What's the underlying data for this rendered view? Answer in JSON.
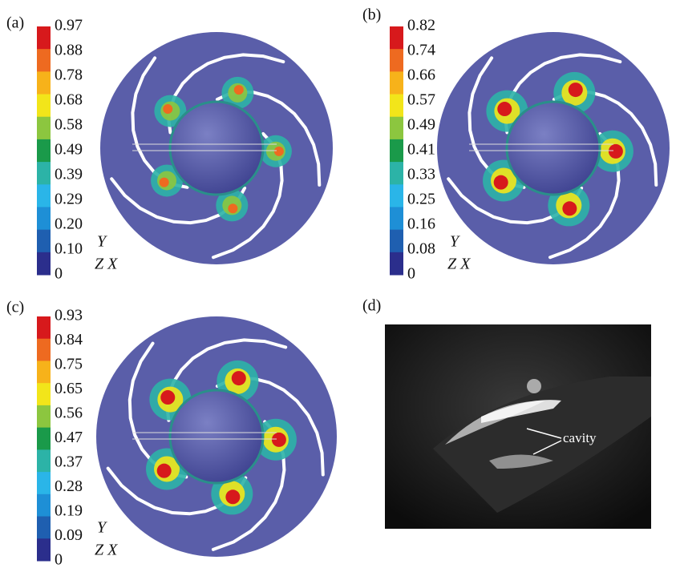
{
  "panels": [
    {
      "label": "(a)",
      "colorbar": [
        "0.97",
        "0.88",
        "0.78",
        "0.68",
        "0.58",
        "0.49",
        "0.39",
        "0.29",
        "0.20",
        "0.10",
        "0"
      ],
      "axis_y": "Y",
      "axis_zx": "Z X"
    },
    {
      "label": "(b)",
      "colorbar": [
        "0.82",
        "0.74",
        "0.66",
        "0.57",
        "0.49",
        "0.41",
        "0.33",
        "0.25",
        "0.16",
        "0.08",
        "0"
      ],
      "axis_y": "Y",
      "axis_zx": "Z X"
    },
    {
      "label": "(c)",
      "colorbar": [
        "0.93",
        "0.84",
        "0.75",
        "0.65",
        "0.56",
        "0.47",
        "0.37",
        "0.28",
        "0.19",
        "0.09",
        "0"
      ],
      "axis_y": "Y",
      "axis_zx": "Z X"
    }
  ],
  "photo": {
    "label": "(d)",
    "annotation": "cavity"
  }
}
